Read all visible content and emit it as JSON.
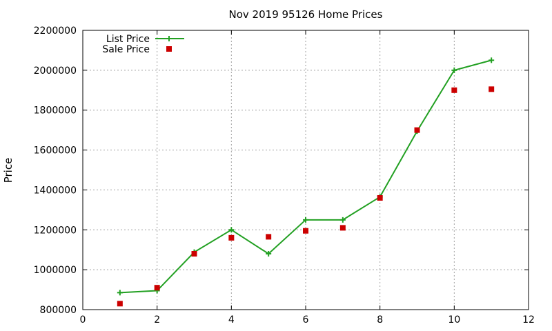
{
  "chart_data": {
    "type": "line",
    "title": "Nov 2019 95126 Home Prices",
    "xlabel": "",
    "ylabel": "Price",
    "xlim": [
      0,
      12
    ],
    "ylim": [
      800000,
      2200000
    ],
    "xticks": [
      "0",
      "2",
      "4",
      "6",
      "8",
      "10",
      "12"
    ],
    "yticks": [
      "800000",
      "1000000",
      "1200000",
      "1400000",
      "1600000",
      "1800000",
      "2000000",
      "2200000"
    ],
    "grid": true,
    "legend_position": "top-left",
    "series": [
      {
        "name": "List Price",
        "style": "line-with-plus-markers",
        "color": "#22a022",
        "x": [
          1,
          2,
          3,
          4,
          5,
          6,
          7,
          8,
          9,
          10,
          11
        ],
        "y": [
          885000,
          895000,
          1088000,
          1200000,
          1080000,
          1250000,
          1250000,
          1365000,
          1695000,
          2000000,
          2050000
        ]
      },
      {
        "name": "Sale Price",
        "style": "square-markers",
        "color": "#cc0000",
        "x": [
          1,
          2,
          3,
          4,
          5,
          6,
          7,
          8,
          9,
          10,
          11
        ],
        "y": [
          830000,
          910000,
          1080000,
          1160000,
          1165000,
          1195000,
          1210000,
          1360000,
          1700000,
          1900000,
          1905000
        ]
      }
    ]
  }
}
